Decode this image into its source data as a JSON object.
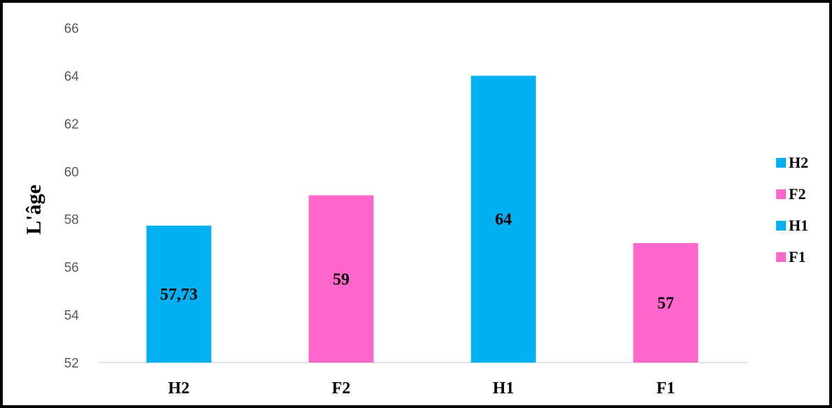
{
  "chart_data": {
    "type": "bar",
    "categories": [
      "H2",
      "F2",
      "H1",
      "F1"
    ],
    "values": [
      57.73,
      59,
      64,
      57
    ],
    "data_labels": [
      "57,73",
      "59",
      "64",
      "57"
    ],
    "bar_colors": [
      "#00B0F0",
      "#FF66CC",
      "#00B0F0",
      "#FF66CC"
    ],
    "ylabel": "L'âge",
    "ylim": [
      52,
      66
    ],
    "yticks": [
      52,
      54,
      56,
      58,
      60,
      62,
      64,
      66
    ],
    "grid": false,
    "legend": {
      "placement": "right",
      "entries": [
        {
          "name": "H2",
          "color": "#00B0F0"
        },
        {
          "name": "F2",
          "color": "#FF66CC"
        },
        {
          "name": "H1",
          "color": "#00B0F0"
        },
        {
          "name": "F1",
          "color": "#FF66CC"
        }
      ]
    }
  }
}
